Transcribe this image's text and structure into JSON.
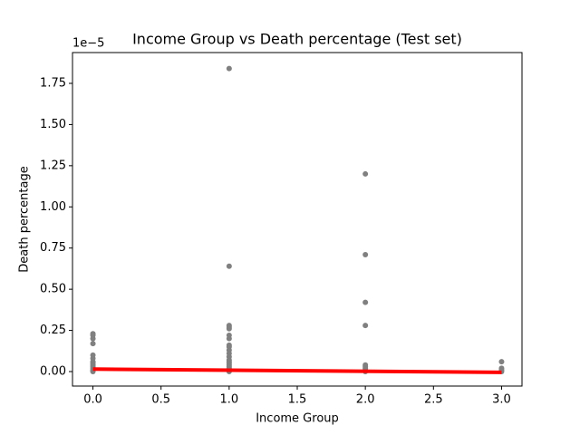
{
  "chart_data": {
    "type": "scatter",
    "title": "Income Group vs Death percentage (Test set)",
    "x_label": "Income Group",
    "y_label": "Death percentage",
    "y_offset_label": "1e−5",
    "xlim": [
      -0.15,
      3.15
    ],
    "ylim": [
      -0.088,
      1.937
    ],
    "xticks": [
      {
        "value": 0,
        "label": "0.0"
      },
      0.5,
      {
        "value": 1,
        "label": "1.0"
      },
      1.5,
      {
        "value": 2,
        "label": "2.0"
      },
      2.5,
      {
        "value": 3,
        "label": "3.0"
      }
    ],
    "yticks": [
      {
        "value": 0,
        "label": "0.00"
      },
      0.25,
      {
        "value": 0.5,
        "label": "0.50"
      },
      0.75,
      {
        "value": 1,
        "label": "1.00"
      },
      1.25,
      {
        "value": 1.5,
        "label": "1.50"
      },
      1.75
    ],
    "series": [
      {
        "type": "scatter",
        "color": "#808080",
        "x": [
          0,
          0,
          0,
          0,
          0,
          0,
          0,
          0,
          0,
          0,
          0,
          0,
          0,
          0,
          1,
          1,
          1,
          1,
          1,
          1,
          1,
          1,
          1,
          1,
          1,
          1,
          1,
          1,
          1,
          1,
          1,
          1,
          1,
          1,
          2,
          2,
          2,
          2,
          2,
          2,
          2,
          2,
          2,
          3,
          3,
          3,
          3
        ],
        "values": [
          0.23,
          0.22,
          0.2,
          0.17,
          0.1,
          0.08,
          0.06,
          0.05,
          0.04,
          0.03,
          0.02,
          0.01,
          0.005,
          0.0,
          1.84,
          0.64,
          0.28,
          0.27,
          0.26,
          0.22,
          0.2,
          0.16,
          0.15,
          0.13,
          0.11,
          0.09,
          0.07,
          0.06,
          0.05,
          0.04,
          0.03,
          0.02,
          0.01,
          0.0,
          1.2,
          0.71,
          0.42,
          0.28,
          0.04,
          0.03,
          0.02,
          0.01,
          0.0,
          0.06,
          0.02,
          0.01,
          0.0
        ]
      },
      {
        "type": "line",
        "color": "#ff0000",
        "x": [
          0,
          3
        ],
        "values": [
          0.015,
          -0.005
        ]
      }
    ]
  }
}
